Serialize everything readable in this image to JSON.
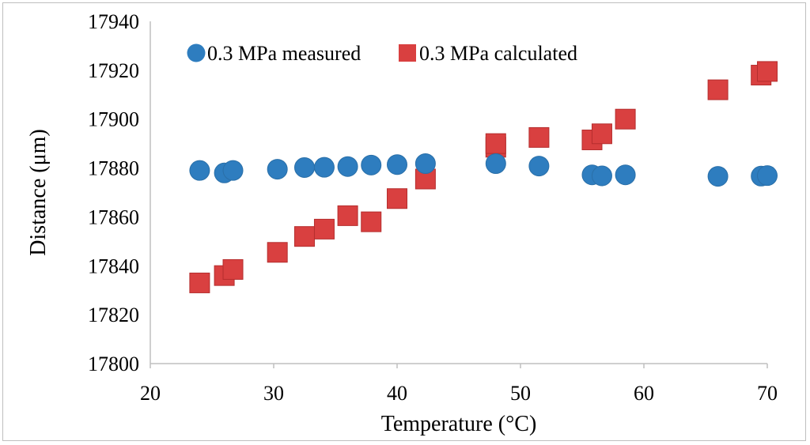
{
  "chart_data": {
    "type": "scatter",
    "title": "",
    "xlabel": "Temperature (°C)",
    "ylabel": "Distance (μm)",
    "xlim": [
      20,
      70
    ],
    "ylim": [
      17800,
      17940
    ],
    "xticks": [
      "20",
      "30",
      "40",
      "50",
      "60",
      "70"
    ],
    "yticks": [
      "17800",
      "17820",
      "17840",
      "17860",
      "17880",
      "17900",
      "17920",
      "17940"
    ],
    "legend": "top-left",
    "grid": false,
    "series": [
      {
        "name": "0.3 MPa measured",
        "marker": "circle",
        "color": "#2e7dbf",
        "points": [
          [
            24.0,
            17879
          ],
          [
            26.0,
            17878
          ],
          [
            26.7,
            17879
          ],
          [
            30.3,
            17879.5
          ],
          [
            32.5,
            17880.2
          ],
          [
            34.1,
            17880.3
          ],
          [
            36.0,
            17880.6
          ],
          [
            37.9,
            17881.2
          ],
          [
            40.0,
            17881.4
          ],
          [
            42.3,
            17881.8
          ],
          [
            48.0,
            17881.8
          ],
          [
            51.5,
            17880.8
          ],
          [
            55.8,
            17877.2
          ],
          [
            56.6,
            17876.8
          ],
          [
            58.5,
            17877.2
          ],
          [
            66.0,
            17876.6
          ],
          [
            69.5,
            17876.7
          ],
          [
            70.0,
            17876.9
          ]
        ]
      },
      {
        "name": "0.3 MPa calculated",
        "marker": "square",
        "color": "#d94040",
        "points": [
          [
            24.0,
            17833
          ],
          [
            26.0,
            17836
          ],
          [
            26.7,
            17838.5
          ],
          [
            30.3,
            17845.5
          ],
          [
            32.5,
            17852
          ],
          [
            34.1,
            17855
          ],
          [
            36.0,
            17860.5
          ],
          [
            37.9,
            17858
          ],
          [
            40.0,
            17867.5
          ],
          [
            42.3,
            17875.5
          ],
          [
            48.0,
            17888.5
          ],
          [
            48.0,
            17890
          ],
          [
            51.5,
            17892.5
          ],
          [
            55.8,
            17891.5
          ],
          [
            56.6,
            17894
          ],
          [
            58.5,
            17900
          ],
          [
            66.0,
            17912
          ],
          [
            69.5,
            17918
          ],
          [
            70.0,
            17919.5
          ]
        ]
      }
    ]
  }
}
